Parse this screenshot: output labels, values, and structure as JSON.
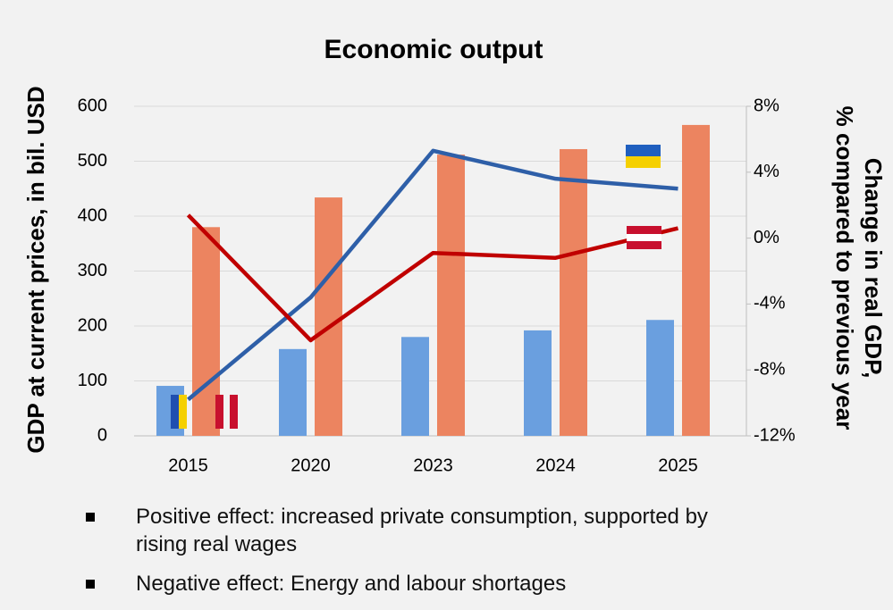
{
  "chart_data": {
    "type": "bar-line",
    "title": "Economic output",
    "y_label": "GDP at current prices, in bil. USD",
    "y2_label": [
      "Change in real GDP,",
      "% compared to previous year"
    ],
    "categories": [
      "2015",
      "2020",
      "2023",
      "2024",
      "2025"
    ],
    "series": [
      {
        "type": "bar",
        "color": "#6a9fdf",
        "values": [
          91,
          158,
          180,
          192,
          211
        ]
      },
      {
        "type": "bar",
        "color": "#ec8460",
        "values": [
          380,
          434,
          512,
          522,
          566
        ]
      },
      {
        "type": "line",
        "axis": "y2",
        "color": "#2e5fa8",
        "values": [
          -9.8,
          -3.6,
          5.3,
          3.6,
          3.0
        ]
      },
      {
        "type": "line",
        "axis": "y2",
        "color": "#c00000",
        "values": [
          1.4,
          -6.2,
          -0.9,
          -1.2,
          0.6
        ]
      }
    ],
    "ylim": [
      0,
      600
    ],
    "yticks": [
      0,
      100,
      200,
      300,
      400,
      500,
      600
    ],
    "y2lim": [
      -12,
      8
    ],
    "y2ticks": [
      {
        "value": -12,
        "label": "-12%"
      },
      {
        "value": -8,
        "label": "-8%"
      },
      {
        "value": -4,
        "label": "-4%"
      },
      {
        "value": 0,
        "label": "0%"
      },
      {
        "value": 4,
        "label": "4%"
      },
      {
        "value": 8,
        "label": "8%"
      }
    ],
    "grid": true,
    "notes": [
      "Positive effect: increased private consumption, supported by rising real wages",
      "Negative effect: Energy and labour shortages"
    ]
  }
}
